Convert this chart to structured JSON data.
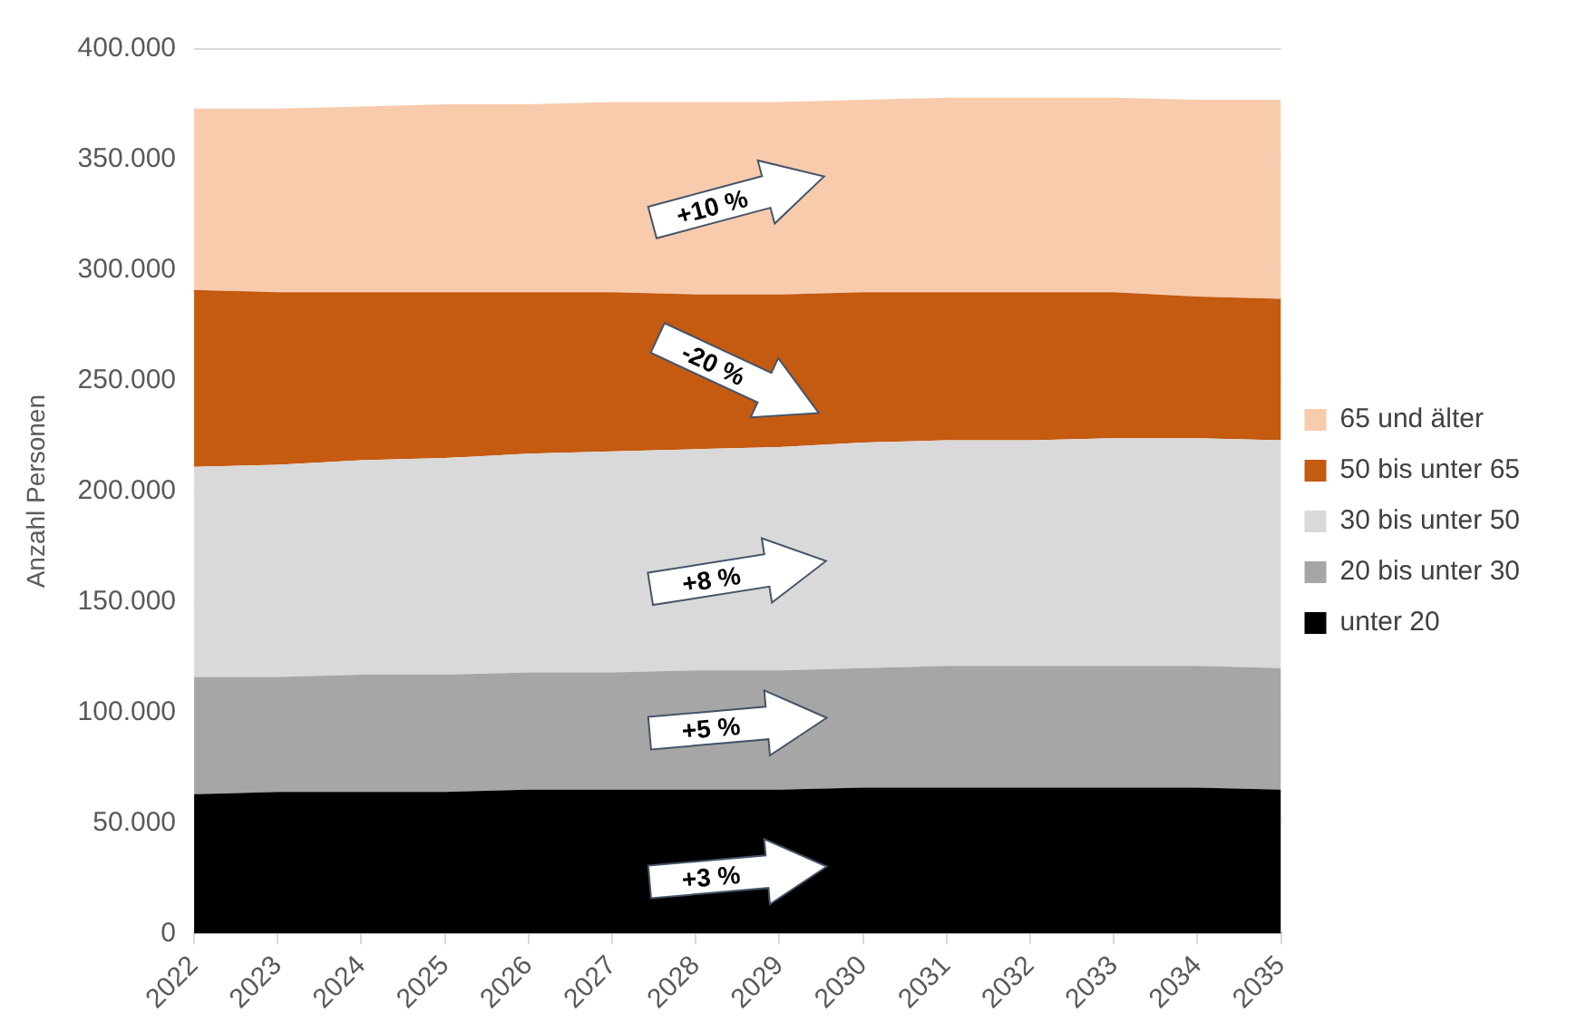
{
  "chart_data": {
    "type": "area",
    "stacked": true,
    "ylabel": "Anzahl Personen",
    "categories": [
      "2022",
      "2023",
      "2024",
      "2025",
      "2026",
      "2027",
      "2028",
      "2029",
      "2030",
      "2031",
      "2032",
      "2033",
      "2034",
      "2035"
    ],
    "series": [
      {
        "name": "unter 20",
        "color": "#000000",
        "values": [
          63000,
          64000,
          64000,
          64000,
          65000,
          65000,
          65000,
          65000,
          66000,
          66000,
          66000,
          66000,
          66000,
          65000
        ]
      },
      {
        "name": "20 bis unter 30",
        "color": "#a6a6a6",
        "values": [
          53000,
          52000,
          53000,
          53000,
          53000,
          53000,
          54000,
          54000,
          54000,
          55000,
          55000,
          55000,
          55000,
          55000
        ]
      },
      {
        "name": "30 bis unter 50",
        "color": "#d9d9d9",
        "values": [
          95000,
          96000,
          97000,
          98000,
          99000,
          100000,
          100000,
          101000,
          102000,
          102000,
          102000,
          103000,
          103000,
          103000
        ]
      },
      {
        "name": "50 bis unter 65",
        "color": "#c55a11",
        "values": [
          80000,
          78000,
          76000,
          75000,
          73000,
          72000,
          70000,
          69000,
          68000,
          67000,
          67000,
          66000,
          64000,
          64000
        ]
      },
      {
        "name": "65 und älter",
        "color": "#f8cbad",
        "values": [
          82000,
          83000,
          84000,
          85000,
          85000,
          86000,
          87000,
          87000,
          87000,
          88000,
          88000,
          88000,
          89000,
          90000
        ]
      }
    ],
    "ylim": [
      0,
      400000
    ],
    "yticks": [
      {
        "value": 0,
        "label": "0"
      },
      {
        "value": 50000,
        "label": "50.000"
      },
      {
        "value": 100000,
        "label": "100.000"
      },
      {
        "value": 150000,
        "label": "150.000"
      },
      {
        "value": 200000,
        "label": "200.000"
      },
      {
        "value": 250000,
        "label": "250.000"
      },
      {
        "value": 300000,
        "label": "300.000"
      },
      {
        "value": 350000,
        "label": "350.000"
      },
      {
        "value": 400000,
        "label": "400.000"
      }
    ],
    "grid": "y",
    "legend": "right",
    "annotations": [
      "+3 %",
      "+5 %",
      "+8 %",
      "-20 %",
      "+10 %"
    ]
  }
}
